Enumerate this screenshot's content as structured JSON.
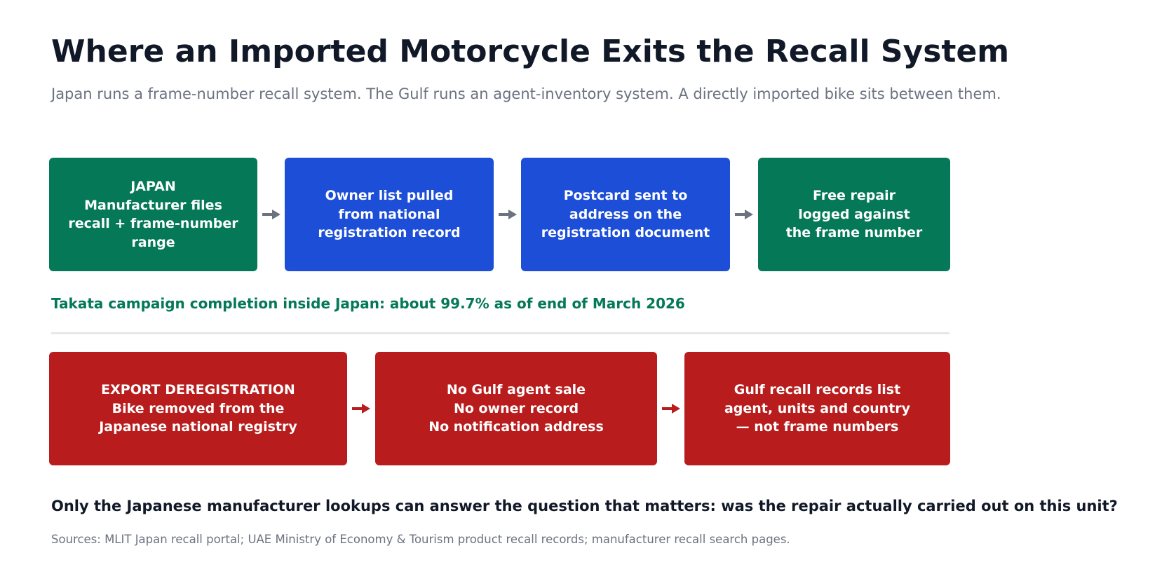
{
  "header": {
    "title": "Where an Imported Motorcycle Exits the Recall System",
    "subtitle": "Japan runs a frame-number recall system. The Gulf runs an agent-inventory system. A directly imported bike sits between them."
  },
  "japan_flow": {
    "nodes": [
      {
        "lines": [
          "JAPAN",
          "Manufacturer files",
          "recall + frame-number",
          "range"
        ]
      },
      {
        "lines": [
          "Owner list pulled",
          "from national",
          "registration record"
        ]
      },
      {
        "lines": [
          "Postcard sent to",
          "address on the",
          "registration document"
        ]
      },
      {
        "lines": [
          "Free repair",
          "logged against",
          "the frame number"
        ]
      }
    ]
  },
  "note": "Takata campaign completion inside Japan: about 99.7% as of end of March 2026",
  "export_flow": {
    "nodes": [
      {
        "lines": [
          "EXPORT DEREGISTRATION",
          "Bike removed from the",
          "Japanese national registry"
        ]
      },
      {
        "lines": [
          "No Gulf agent sale",
          "No owner record",
          "No notification address"
        ]
      },
      {
        "lines": [
          "Gulf recall records list",
          "agent, units and country",
          "— not frame numbers"
        ]
      }
    ]
  },
  "conclusion": "Only the Japanese manufacturer lookups can answer the question that matters: was the repair actually carried out on this unit?",
  "sources": "Sources: MLIT Japan recall portal; UAE Ministry of Economy & Tourism product recall records; manufacturer recall search pages."
}
